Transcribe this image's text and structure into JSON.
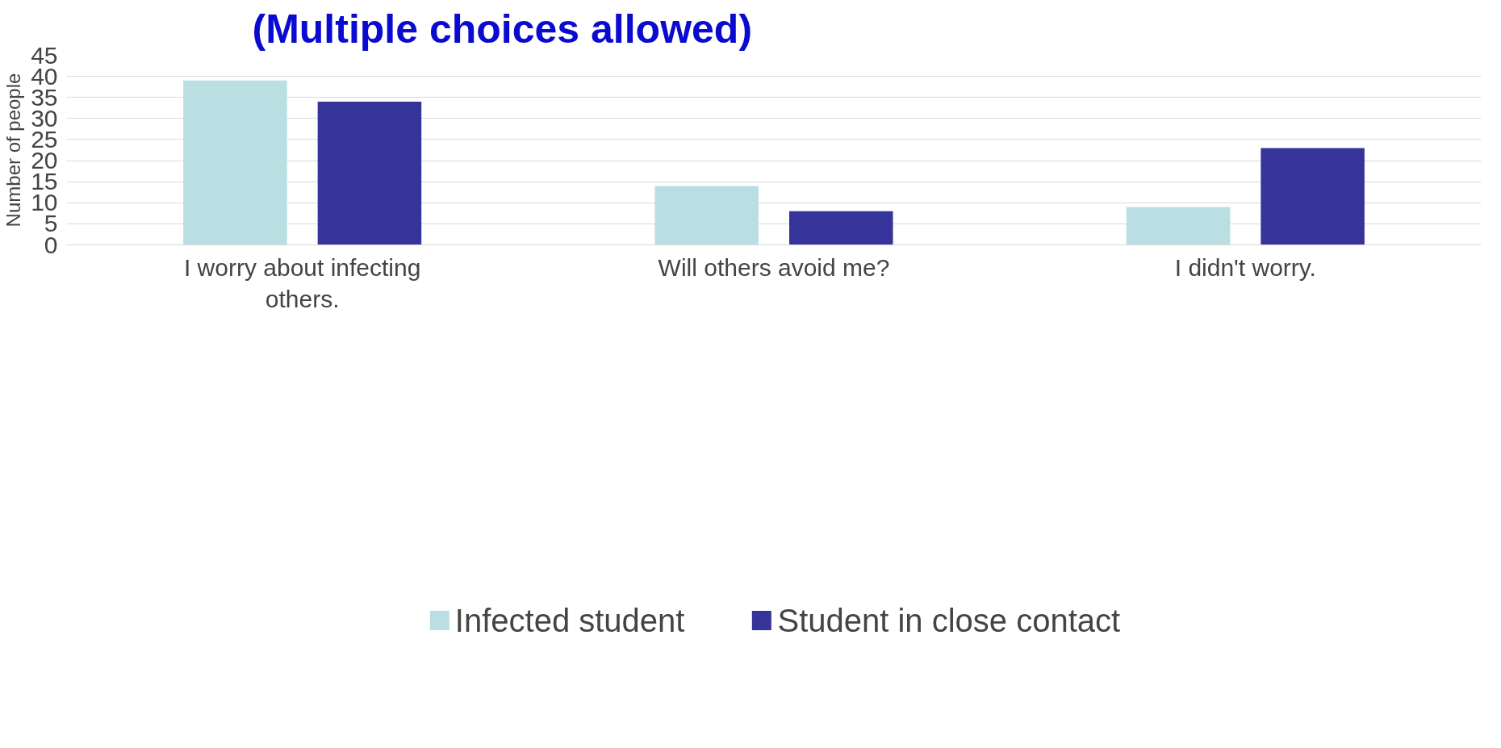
{
  "chart_data": {
    "type": "bar",
    "title": "(Multiple choices allowed)",
    "ylabel": "Number of people",
    "categories": [
      "I worry about infecting others.",
      "Will others avoid me?",
      "I didn't worry."
    ],
    "series": [
      {
        "name": "Infected student",
        "color": "#b9dfe2",
        "values": [
          39,
          14,
          9
        ]
      },
      {
        "name": "Student in close contact",
        "color": "#36349a",
        "values": [
          34,
          8,
          23
        ]
      }
    ],
    "ylim": [
      0,
      45
    ],
    "yticks": [
      0,
      5,
      10,
      15,
      20,
      25,
      30,
      35,
      40,
      45
    ],
    "grid": "y",
    "legend": "bottom"
  }
}
